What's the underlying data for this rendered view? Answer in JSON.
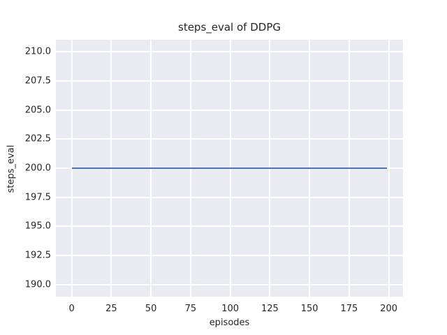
{
  "chart_data": {
    "type": "line",
    "title": "steps_eval of DDPG",
    "xlabel": "episodes",
    "ylabel": "steps_eval",
    "x_ticks": [
      0,
      25,
      50,
      75,
      100,
      125,
      150,
      175,
      200
    ],
    "x_tick_labels": [
      "0",
      "25",
      "50",
      "75",
      "100",
      "125",
      "150",
      "175",
      "200"
    ],
    "y_ticks": [
      210.0,
      207.5,
      205.0,
      202.5,
      200.0,
      197.5,
      195.0,
      192.5,
      190.0
    ],
    "y_tick_labels": [
      "210.0",
      "207.5",
      "205.0",
      "202.5",
      "200.0",
      "197.5",
      "195.0",
      "192.5",
      "190.0"
    ],
    "xlim": [
      -9.95,
      208.95
    ],
    "ylim": [
      188.95,
      211.05
    ],
    "grid": true,
    "grid_style": "seaborn-darkgrid",
    "legend": false,
    "plot_bg_color": "#eaeaf2",
    "grid_color": "#ffffff",
    "text_color": "#262626",
    "series": [
      {
        "name": "steps_eval",
        "color": "#4c72b0",
        "x": [
          0,
          199
        ],
        "y": [
          200,
          200
        ]
      }
    ]
  }
}
